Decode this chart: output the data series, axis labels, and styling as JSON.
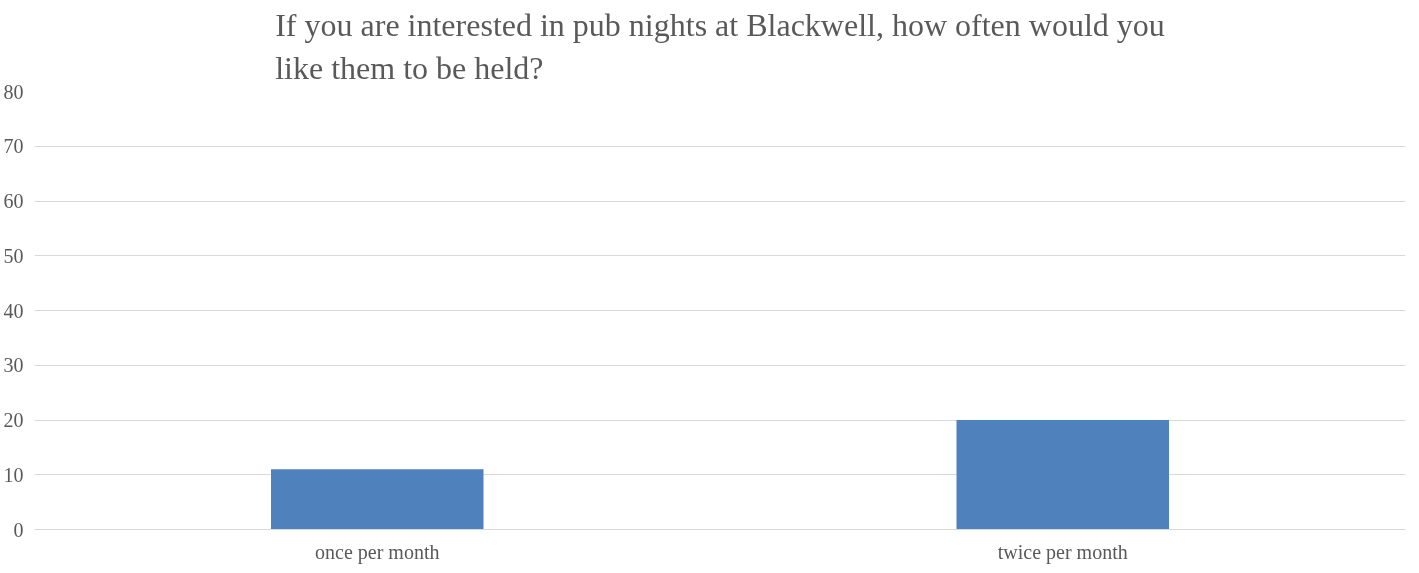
{
  "chart_data": {
    "type": "bar",
    "title": "If you are interested in pub nights at Blackwell, how often would you\nlike them to be held?",
    "categories": [
      "once per month",
      "twice per month"
    ],
    "values": [
      11,
      20
    ],
    "color": "#4f81bd",
    "ylim": [
      0,
      80
    ],
    "yticks": [
      0,
      10,
      20,
      30,
      40,
      50,
      60,
      70,
      80
    ],
    "grid": "y"
  }
}
